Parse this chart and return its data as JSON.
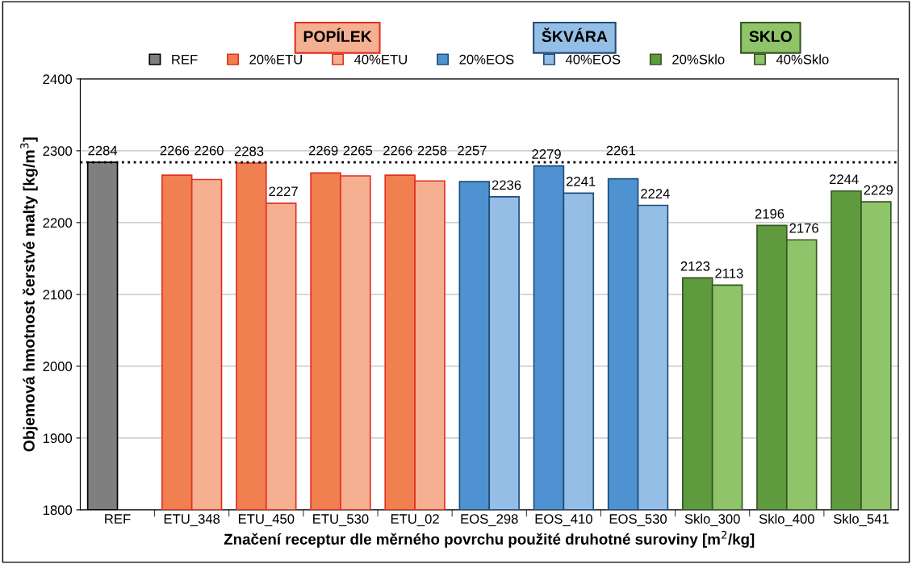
{
  "chart_data": {
    "type": "bar",
    "xlabel": "Značení receptur dle měrného povrchu použité druhotné suroviny [m$^{2}$/kg]",
    "ylabel": "Objemová hmotnost čerstvé malty [kg/m$^{3}$]",
    "annotations": [
      "POPÍLEK",
      "ŠKVÁRA",
      "SKLO"
    ],
    "categories": [
      "REF",
      "ETU_348",
      "ETU_450",
      "ETU_530",
      "ETU_02",
      "EOS_298",
      "EOS_410",
      "EOS_530",
      "Sklo_300",
      "Sklo_400",
      "Sklo_541"
    ],
    "series": [
      {
        "name": "REF",
        "color": "#7f7f7f",
        "values": [
          2284,
          null,
          null,
          null,
          null,
          null,
          null,
          null,
          null,
          null,
          null
        ]
      },
      {
        "name": "20%ETU",
        "color": "#f08050",
        "values": [
          null,
          2266,
          2283,
          2269,
          2266,
          null,
          null,
          null,
          null,
          null,
          null
        ]
      },
      {
        "name": "40%ETU",
        "color": "#f5b092",
        "values": [
          null,
          2260,
          2227,
          2265,
          2258,
          null,
          null,
          null,
          null,
          null,
          null
        ]
      },
      {
        "name": "20%EOS",
        "color": "#4f92d2",
        "values": [
          null,
          null,
          null,
          null,
          null,
          2257,
          2279,
          2261,
          null,
          null,
          null
        ]
      },
      {
        "name": "40%EOS",
        "color": "#95bee6",
        "values": [
          null,
          null,
          null,
          null,
          null,
          2236,
          2241,
          2224,
          null,
          null,
          null
        ]
      },
      {
        "name": "20%Sklo",
        "color": "#5f9a3e",
        "values": [
          null,
          null,
          null,
          null,
          null,
          null,
          null,
          null,
          2123,
          2196,
          2244
        ]
      },
      {
        "name": "40%Sklo",
        "color": "#8fc46a",
        "values": [
          null,
          null,
          null,
          null,
          null,
          null,
          null,
          null,
          2113,
          2176,
          2229
        ]
      }
    ],
    "ylim": [
      1800,
      2400
    ],
    "yticks": [
      1800,
      1900,
      2000,
      2100,
      2200,
      2300,
      2400
    ],
    "ref_lines": [
      {
        "axis": "y",
        "value": 2284,
        "color": "#000000",
        "line_style": "dotted"
      }
    ],
    "data_labels": true,
    "grid": "y",
    "legend": "top"
  }
}
